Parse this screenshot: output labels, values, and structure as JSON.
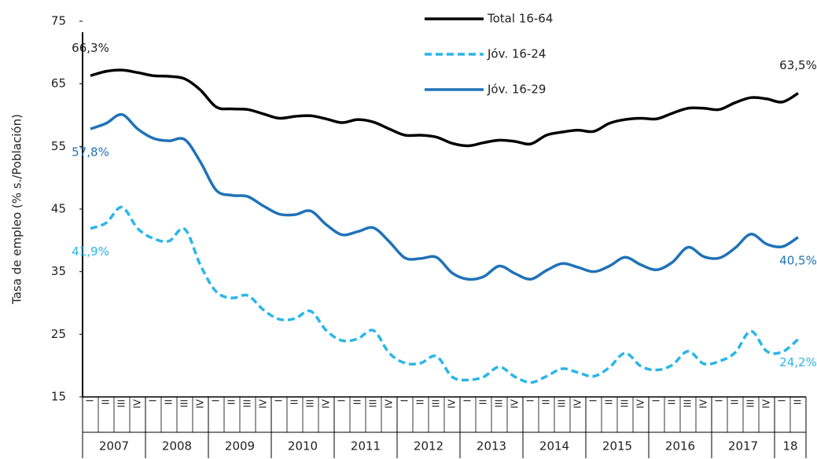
{
  "chart_data": {
    "type": "line",
    "y_label": "Tasa de empleo (% s./Población)",
    "ylim": [
      15,
      75
    ],
    "yticks": [
      15,
      25,
      35,
      45,
      55,
      65,
      75
    ],
    "categories": [
      "I",
      "II",
      "III",
      "IV",
      "I",
      "II",
      "III",
      "IV",
      "I",
      "II",
      "III",
      "IV",
      "I",
      "II",
      "III",
      "IV",
      "I",
      "II",
      "III",
      "IV",
      "I",
      "II",
      "III",
      "IV",
      "I",
      "II",
      "III",
      "IV",
      "I",
      "II",
      "III",
      "IV",
      "I",
      "II",
      "III",
      "IV",
      "I",
      "II",
      "III",
      "IV",
      "I",
      "II",
      "III",
      "IV",
      "I",
      "II"
    ],
    "years": [
      "2007",
      "2008",
      "2009",
      "2010",
      "2011",
      "2012",
      "2013",
      "2014",
      "2015",
      "2016",
      "2017",
      "18"
    ],
    "legend": "top",
    "series": [
      {
        "name": "Total 16-64",
        "color": "#000000",
        "dash": false,
        "values": [
          66.3,
          67.0,
          67.2,
          66.8,
          66.3,
          66.2,
          65.8,
          64.0,
          61.3,
          61.0,
          60.9,
          60.2,
          59.5,
          59.8,
          59.9,
          59.4,
          58.8,
          59.3,
          58.9,
          57.8,
          56.8,
          56.8,
          56.5,
          55.5,
          55.1,
          55.6,
          56.0,
          55.8,
          55.4,
          56.8,
          57.3,
          57.6,
          57.4,
          58.7,
          59.3,
          59.5,
          59.4,
          60.3,
          61.1,
          61.1,
          60.9,
          62.0,
          62.8,
          62.6,
          62.1,
          63.5
        ],
        "value_labels": [
          "66,3%",
          null,
          null,
          null,
          null,
          null,
          null,
          null,
          null,
          null,
          null,
          null,
          null,
          null,
          null,
          null,
          null,
          null,
          null,
          null,
          null,
          null,
          null,
          null,
          null,
          null,
          null,
          null,
          null,
          null,
          null,
          null,
          null,
          null,
          null,
          null,
          null,
          null,
          null,
          null,
          null,
          null,
          null,
          null,
          null,
          "63,5%"
        ]
      },
      {
        "name": "Jóv. 16-24",
        "color": "#29b6e8",
        "dash": true,
        "values": [
          41.9,
          42.8,
          45.3,
          41.9,
          40.3,
          39.9,
          41.8,
          36.0,
          31.8,
          30.8,
          31.2,
          28.9,
          27.4,
          27.5,
          28.7,
          25.6,
          24.0,
          24.3,
          25.6,
          22.0,
          20.4,
          20.4,
          21.5,
          18.2,
          17.7,
          18.2,
          19.8,
          18.2,
          17.3,
          18.3,
          19.5,
          18.9,
          18.3,
          19.7,
          22.0,
          19.9,
          19.3,
          20.1,
          22.3,
          20.3,
          20.7,
          22.1,
          25.5,
          22.3,
          22.2,
          24.2
        ],
        "value_labels": [
          "41,9%",
          null,
          null,
          null,
          null,
          null,
          null,
          null,
          null,
          null,
          null,
          null,
          null,
          null,
          null,
          null,
          null,
          null,
          null,
          null,
          null,
          null,
          null,
          null,
          null,
          null,
          null,
          null,
          null,
          null,
          null,
          null,
          null,
          null,
          null,
          null,
          null,
          null,
          null,
          null,
          null,
          null,
          null,
          null,
          null,
          "24,2%"
        ]
      },
      {
        "name": "Jóv. 16-29",
        "color": "#1f72b8",
        "dash": false,
        "values": [
          57.8,
          58.7,
          60.1,
          57.8,
          56.3,
          55.9,
          56.1,
          52.5,
          48.0,
          47.2,
          47.0,
          45.5,
          44.2,
          44.1,
          44.7,
          42.5,
          40.9,
          41.4,
          42.0,
          39.8,
          37.2,
          37.1,
          37.3,
          34.8,
          33.8,
          34.2,
          35.9,
          34.7,
          33.8,
          35.2,
          36.3,
          35.7,
          35.0,
          35.9,
          37.3,
          36.1,
          35.3,
          36.5,
          38.9,
          37.4,
          37.2,
          38.8,
          41.0,
          39.4,
          39.0,
          40.5
        ],
        "value_labels": [
          "57,8%",
          null,
          null,
          null,
          null,
          null,
          null,
          null,
          null,
          null,
          null,
          null,
          null,
          null,
          null,
          null,
          null,
          null,
          null,
          null,
          null,
          null,
          null,
          null,
          null,
          null,
          null,
          null,
          null,
          null,
          null,
          null,
          null,
          null,
          null,
          null,
          null,
          null,
          null,
          null,
          null,
          null,
          null,
          null,
          null,
          "40,5%"
        ]
      }
    ]
  }
}
